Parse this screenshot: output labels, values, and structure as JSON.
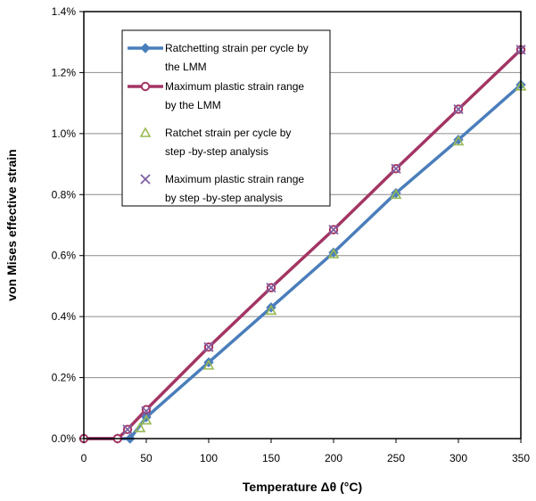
{
  "chart_data": {
    "type": "line",
    "xlabel": "Temperature Δθ (°C)",
    "ylabel": "von Mises effective strain",
    "xlim": [
      0,
      350
    ],
    "ylim": [
      0,
      1.4
    ],
    "x_ticks": [
      0,
      50,
      100,
      150,
      200,
      250,
      300,
      350
    ],
    "x_tick_labels": [
      "0",
      "50",
      "100",
      "150",
      "200",
      "250",
      "300",
      "350"
    ],
    "y_ticks": [
      0,
      0.2,
      0.4,
      0.6,
      0.8,
      1.0,
      1.2,
      1.4
    ],
    "y_tick_labels": [
      "0.0%",
      "0.2%",
      "0.4%",
      "0.6%",
      "0.8%",
      "1.0%",
      "1.2%",
      "1.4%"
    ],
    "y_unit": "%",
    "grid": "y-major",
    "legend_position": "top-left inside",
    "series": [
      {
        "name": "Ratchetting strain per cycle by the LMM",
        "legend_lines": [
          "Ratchetting strain per cycle by",
          "the LMM"
        ],
        "style": "line+diamond",
        "color": "#4a7ebb",
        "points": [
          [
            0,
            0
          ],
          [
            27,
            0
          ],
          [
            37,
            0
          ],
          [
            50,
            0.07
          ],
          [
            100,
            0.25
          ],
          [
            150,
            0.43
          ],
          [
            200,
            0.61
          ],
          [
            250,
            0.805
          ],
          [
            300,
            0.98
          ],
          [
            350,
            1.16
          ]
        ]
      },
      {
        "name": "Maximum plastic strain range by the LMM",
        "legend_lines": [
          "Maximum plastic strain range",
          "by the LMM"
        ],
        "style": "line+circle",
        "color": "#a33563",
        "points": [
          [
            0,
            0
          ],
          [
            27,
            0
          ],
          [
            35,
            0.03
          ],
          [
            50,
            0.095
          ],
          [
            100,
            0.3
          ],
          [
            150,
            0.495
          ],
          [
            200,
            0.685
          ],
          [
            250,
            0.885
          ],
          [
            300,
            1.08
          ],
          [
            350,
            1.275
          ]
        ]
      },
      {
        "name": "Ratchet strain per cycle by step-by-step analysis",
        "legend_lines": [
          "Ratchet strain per cycle by",
          "step -by-step analysis"
        ],
        "style": "triangle",
        "color": "#98b954",
        "points": [
          [
            45,
            0.035
          ],
          [
            50,
            0.06
          ],
          [
            100,
            0.24
          ],
          [
            150,
            0.42
          ],
          [
            200,
            0.605
          ],
          [
            250,
            0.8
          ],
          [
            300,
            0.975
          ],
          [
            350,
            1.155
          ]
        ]
      },
      {
        "name": "Maximum plastic strain range by step-by-step analysis",
        "legend_lines": [
          "Maximum plastic strain range",
          "by step -by-step analysis"
        ],
        "style": "x",
        "color": "#7d5fa0",
        "points": [
          [
            35,
            0.03
          ],
          [
            50,
            0.09
          ],
          [
            100,
            0.3
          ],
          [
            150,
            0.495
          ],
          [
            200,
            0.685
          ],
          [
            250,
            0.885
          ],
          [
            300,
            1.08
          ],
          [
            350,
            1.275
          ]
        ]
      }
    ]
  }
}
